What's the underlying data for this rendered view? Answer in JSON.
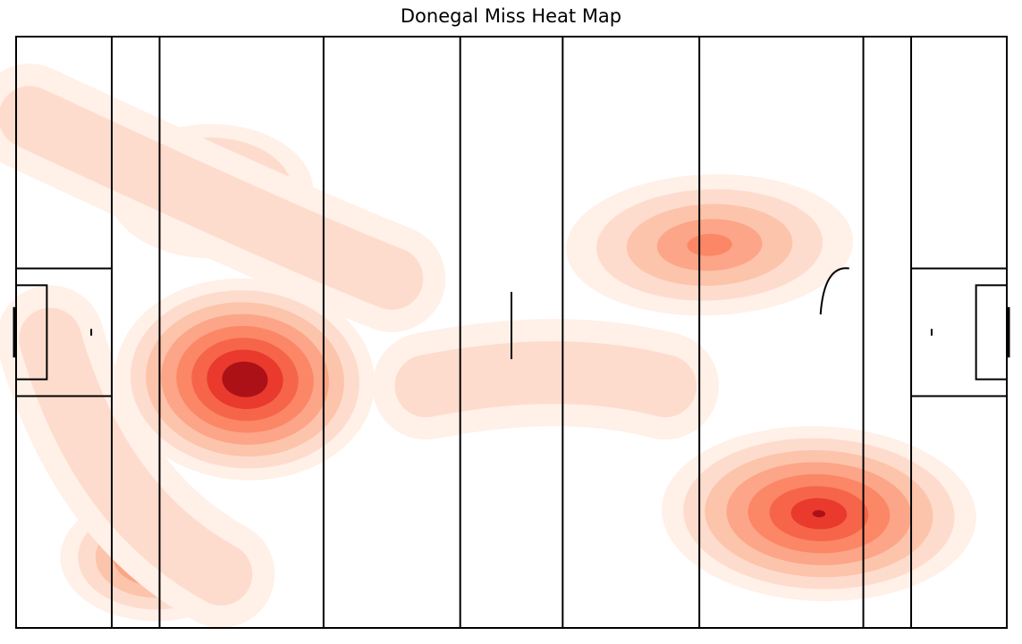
{
  "chart_data": {
    "type": "heatmap",
    "title": "Donegal Miss Heat Map",
    "xlabel": "",
    "ylabel": "",
    "grid": false,
    "legend": "none",
    "colormap": "Reds",
    "colors": {
      "pitch_lines": "#000000",
      "background": "#ffffff",
      "levels": [
        "#fff0e8",
        "#fedccd",
        "#fcc4ab",
        "#fca588",
        "#fb8767",
        "#f6654a",
        "#e93a2d",
        "#ac1117"
      ]
    },
    "pitch": {
      "length": 145,
      "width": 88,
      "line_positions_x": [
        0,
        14,
        21,
        45,
        65,
        80,
        100,
        124,
        131,
        145
      ],
      "small_rect_depth": 4.5,
      "small_rect_width": 14,
      "large_rect_depth": 14,
      "large_rect_width": 19,
      "goal_width": 6.5,
      "penalty_mark_distance": 11,
      "centre_line_length": 10
    },
    "density_peaks": [
      {
        "x": 33.5,
        "y": 51,
        "intensity": 1.0
      },
      {
        "x": 20.5,
        "y": 77.5,
        "intensity": 0.62
      },
      {
        "x": 28.5,
        "y": 23,
        "intensity": 0.55
      },
      {
        "x": 117.5,
        "y": 71,
        "intensity": 0.85
      },
      {
        "x": 101.5,
        "y": 31,
        "intensity": 0.53
      }
    ]
  }
}
